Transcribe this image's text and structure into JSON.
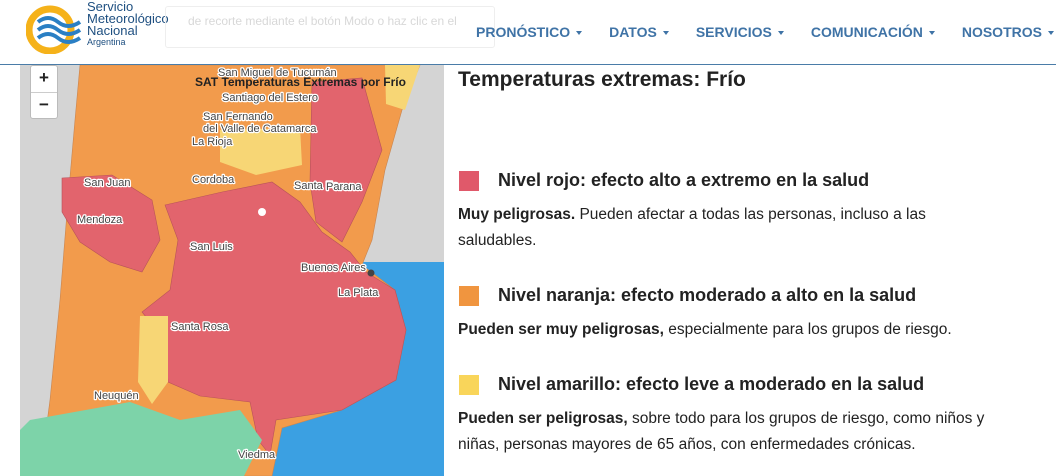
{
  "header": {
    "logo_lines": [
      "Servicio",
      "Meteorológico",
      "Nacional",
      "Argentina"
    ],
    "search_placeholder": "de recorte mediante el botón Modo o haz clic en el",
    "nav": [
      "PRONÓSTICO",
      "DATOS",
      "SERVICIOS",
      "COMUNICACIÓN",
      "NOSOTROS"
    ]
  },
  "map": {
    "title": "SAT Temperaturas Extremas por Frío",
    "zoom_in": "+",
    "zoom_out": "−",
    "labels": [
      "San Miguel de Tucumán",
      "Santiago del Estero",
      "San Fernando",
      "del Valle de Catamarca",
      "La Rioja",
      "San Juan",
      "Cordoba",
      "Santa Fe",
      "Parana",
      "Mendoza",
      "San Luis",
      "Buenos Aires",
      "La Plata",
      "Santa Rosa",
      "Neuquén",
      "Viedma"
    ]
  },
  "panel": {
    "title": "Temperaturas extremas: Frío",
    "levels": [
      {
        "heading": "Nivel rojo: efecto alto a extremo en la salud",
        "bold": "Muy peligrosas.",
        "text": "Pueden afectar a todas las personas, incluso a las saludables."
      },
      {
        "heading": "Nivel naranja: efecto moderado a alto en la salud",
        "bold": "Pueden ser muy peligrosas,",
        "text": "especialmente para los grupos de riesgo."
      },
      {
        "heading": "Nivel amarillo: efecto leve a moderado en la salud",
        "bold": "Pueden ser peligrosas,",
        "text": "sobre todo para los grupos de riesgo, como niños y niñas, personas mayores de 65 años, con enfermedades crónicas."
      }
    ]
  }
}
